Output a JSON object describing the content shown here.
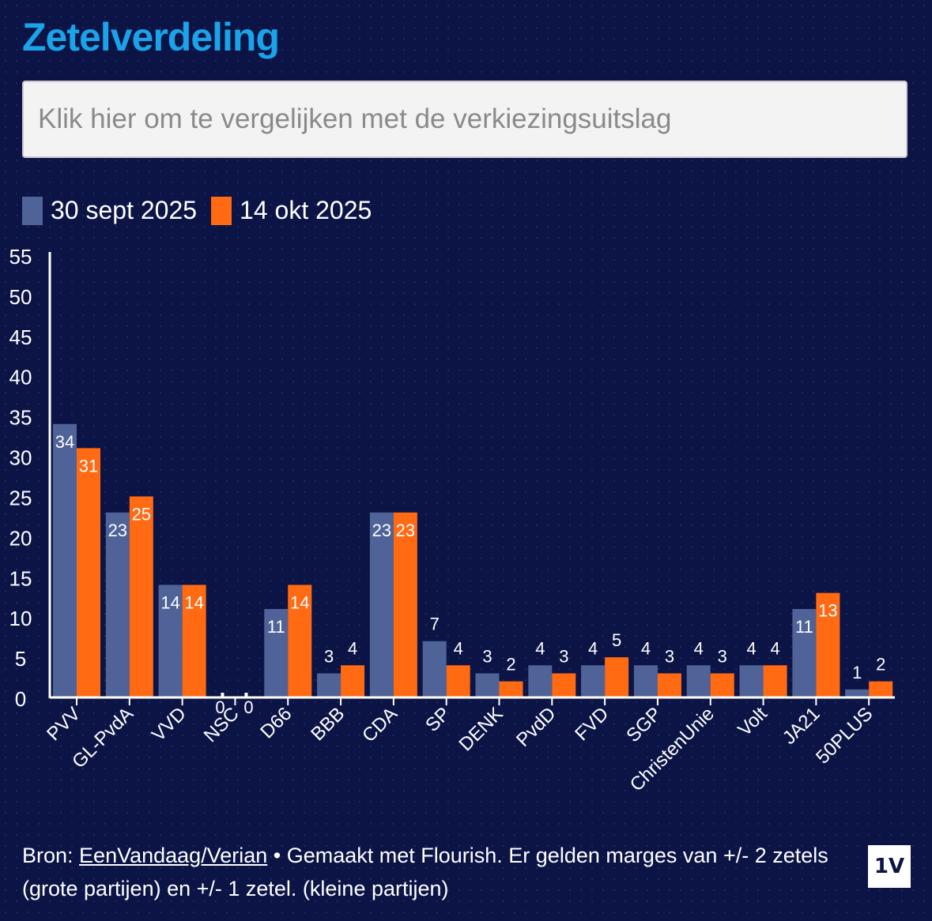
{
  "title": "Zetelverdeling",
  "compare_button": "Klik hier om te vergelijken met de verkiezingsuitslag",
  "footer": {
    "prefix": "Bron: ",
    "source_link": "EenVandaag/Verian",
    "suffix": " • Gemaakt met Flourish. Er gelden marges van +/- 2 zetels (grote partijen) en +/- 1 zetel. (kleine partijen)"
  },
  "logo_text": "1V",
  "colors": {
    "series_1": "#4f6399",
    "series_2": "#ff6a13",
    "axis": "#ffffff"
  },
  "chart_data": {
    "type": "bar",
    "title": "",
    "xlabel": "",
    "ylabel": "",
    "ylim": [
      0,
      55
    ],
    "yticks": [
      0,
      5,
      10,
      15,
      20,
      25,
      30,
      35,
      40,
      45,
      50,
      55
    ],
    "grid": false,
    "legend_position": "top-left",
    "categories": [
      "PVV",
      "GL-PvdA",
      "VVD",
      "NSC",
      "D66",
      "BBB",
      "CDA",
      "SP",
      "DENK",
      "PvdD",
      "FVD",
      "SGP",
      "ChristenUnie",
      "Volt",
      "JA21",
      "50PLUS"
    ],
    "series": [
      {
        "name": "30 sept 2025",
        "color": "#4f6399",
        "values": [
          34,
          23,
          14,
          0,
          11,
          3,
          23,
          7,
          3,
          4,
          4,
          4,
          4,
          4,
          11,
          1
        ]
      },
      {
        "name": "14 okt 2025",
        "color": "#ff6a13",
        "values": [
          31,
          25,
          14,
          0,
          14,
          4,
          23,
          4,
          2,
          3,
          5,
          3,
          3,
          4,
          13,
          2
        ]
      }
    ]
  }
}
